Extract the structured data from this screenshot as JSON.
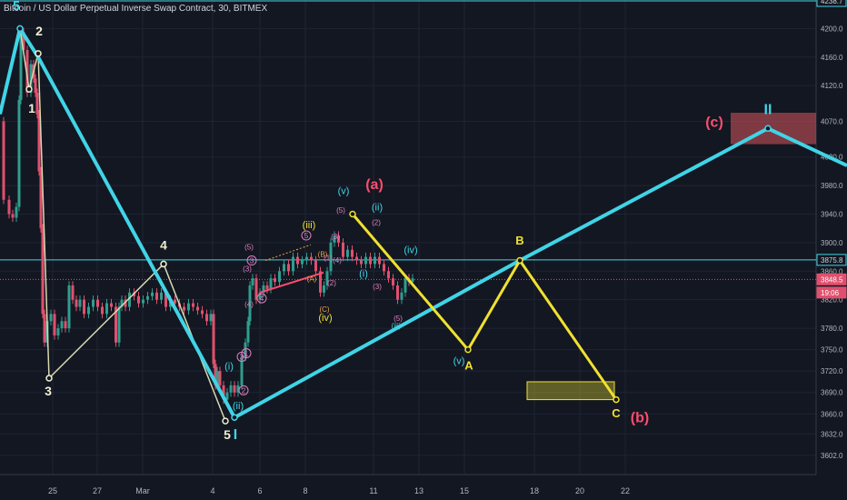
{
  "header": {
    "title": "Bitcoin / US Dollar Perpetual Inverse Swap Contract, 30, BITMEX"
  },
  "colors": {
    "background": "#131722",
    "grid": "#1e2433",
    "axis_text": "#b2b5be",
    "up": "#2f9e8f",
    "down": "#e0506e",
    "price": "#d1d4dc",
    "primary_wave": "#40d4e6",
    "abc_wave": "#f0e130",
    "minor_wave": "#d8d8b0",
    "red_label": "#ff4d6d",
    "pink": "#e080c0",
    "orange": "#f0a040",
    "axis_bg": "#131722",
    "current_price_bg": "#e0506e"
  },
  "chart_data": {
    "type": "candlestick",
    "symbol": "Bitcoin / US Dollar Perpetual Inverse Swap Contract",
    "interval": "30",
    "exchange": "BITMEX",
    "ylim": [
      3575,
      4240
    ],
    "y_ticks": [
      3602.0,
      3632.0,
      3660.0,
      3690.0,
      3720.0,
      3750.0,
      3780.0,
      3820.0,
      3860.0,
      3900.0,
      3940.0,
      3980.0,
      4020.0,
      4070.0,
      4120.0,
      4160.0,
      4200.0
    ],
    "x_ticks": [
      "25",
      "27",
      "Mar",
      "4",
      "6",
      "8",
      "11",
      "13",
      "15",
      "18",
      "20",
      "22"
    ],
    "price_markers": [
      {
        "label": "4238.7",
        "value": 4238.7
      },
      {
        "label": "3875.8",
        "value": 3875.8
      },
      {
        "label": "3848.5",
        "value": 3848.5
      },
      {
        "label": "19:06",
        "value": 3830.0
      }
    ],
    "price_path": [
      [
        0,
        4070
      ],
      [
        8,
        3960
      ],
      [
        12,
        3940
      ],
      [
        16,
        3935
      ],
      [
        20,
        3950
      ],
      [
        22,
        4100
      ],
      [
        24,
        4195
      ],
      [
        28,
        4170
      ],
      [
        32,
        4110
      ],
      [
        36,
        4150
      ],
      [
        38,
        4130
      ],
      [
        40,
        4110
      ],
      [
        42,
        4080
      ],
      [
        44,
        4000
      ],
      [
        46,
        3920
      ],
      [
        48,
        3800
      ],
      [
        50,
        3760
      ],
      [
        54,
        3790
      ],
      [
        58,
        3800
      ],
      [
        62,
        3770
      ],
      [
        66,
        3780
      ],
      [
        70,
        3790
      ],
      [
        74,
        3780
      ],
      [
        78,
        3840
      ],
      [
        82,
        3820
      ],
      [
        86,
        3810
      ],
      [
        90,
        3820
      ],
      [
        95,
        3800
      ],
      [
        100,
        3810
      ],
      [
        105,
        3820
      ],
      [
        110,
        3810
      ],
      [
        115,
        3800
      ],
      [
        120,
        3815
      ],
      [
        125,
        3810
      ],
      [
        130,
        3760
      ],
      [
        132,
        3810
      ],
      [
        136,
        3820
      ],
      [
        140,
        3810
      ],
      [
        145,
        3830
      ],
      [
        150,
        3825
      ],
      [
        155,
        3815
      ],
      [
        160,
        3820
      ],
      [
        165,
        3825
      ],
      [
        170,
        3830
      ],
      [
        175,
        3820
      ],
      [
        180,
        3830
      ],
      [
        185,
        3810
      ],
      [
        190,
        3820
      ],
      [
        195,
        3815
      ],
      [
        200,
        3810
      ],
      [
        205,
        3805
      ],
      [
        210,
        3815
      ],
      [
        215,
        3810
      ],
      [
        220,
        3805
      ],
      [
        225,
        3800
      ],
      [
        230,
        3790
      ],
      [
        234,
        3800
      ],
      [
        236,
        3730
      ],
      [
        238,
        3700
      ],
      [
        240,
        3720
      ],
      [
        244,
        3700
      ],
      [
        248,
        3680
      ],
      [
        252,
        3690
      ],
      [
        256,
        3700
      ],
      [
        260,
        3690
      ],
      [
        264,
        3700
      ],
      [
        268,
        3740
      ],
      [
        272,
        3760
      ],
      [
        274,
        3790
      ],
      [
        276,
        3840
      ],
      [
        280,
        3850
      ],
      [
        284,
        3820
      ],
      [
        288,
        3830
      ],
      [
        292,
        3840
      ],
      [
        296,
        3835
      ],
      [
        300,
        3850
      ],
      [
        305,
        3845
      ],
      [
        310,
        3860
      ],
      [
        315,
        3870
      ],
      [
        320,
        3860
      ],
      [
        325,
        3880
      ],
      [
        330,
        3870
      ],
      [
        335,
        3875
      ],
      [
        340,
        3880
      ],
      [
        345,
        3875
      ],
      [
        350,
        3860
      ],
      [
        355,
        3830
      ],
      [
        358,
        3840
      ],
      [
        362,
        3860
      ],
      [
        366,
        3900
      ],
      [
        370,
        3910
      ],
      [
        375,
        3900
      ],
      [
        380,
        3880
      ],
      [
        385,
        3890
      ],
      [
        390,
        3880
      ],
      [
        395,
        3875
      ],
      [
        400,
        3870
      ],
      [
        405,
        3880
      ],
      [
        410,
        3870
      ],
      [
        415,
        3880
      ],
      [
        420,
        3870
      ],
      [
        425,
        3860
      ],
      [
        430,
        3850
      ],
      [
        435,
        3840
      ],
      [
        440,
        3820
      ],
      [
        444,
        3830
      ],
      [
        448,
        3850
      ],
      [
        452,
        3845
      ],
      [
        456,
        3850
      ]
    ],
    "overlays": {
      "primary_wave": [
        [
          0,
          4080
        ],
        [
          22,
          4200
        ],
        [
          42,
          4160
        ],
        [
          258,
          3655
        ],
        [
          572,
          3875
        ],
        [
          845,
          4060
        ],
        [
          932,
          4008
        ]
      ],
      "abc_wave": [
        [
          388,
          3940
        ],
        [
          515,
          3750
        ],
        [
          572,
          3875
        ],
        [
          678,
          3680
        ]
      ],
      "minor_wave_yellowish": [
        [
          22,
          4200
        ],
        [
          32,
          4115
        ],
        [
          42,
          4165
        ],
        [
          54,
          3710
        ],
        [
          180,
          3870
        ],
        [
          248,
          3650
        ]
      ],
      "red_trendline": [
        [
          286,
          3830
        ],
        [
          356,
          3858
        ]
      ],
      "orange_dotted": [
        [
          292,
          3875
        ],
        [
          342,
          3897
        ]
      ],
      "yellow_box": {
        "x_from": 580,
        "x_to": 676,
        "y_from": 3680,
        "y_to": 3705
      },
      "red_box": {
        "x_from": 804,
        "x_to": 898,
        "y_from": 4038,
        "y_to": 4082
      },
      "horizontal_lines": [
        {
          "value": 4238.7,
          "color": "#40d4e6",
          "style": "solid"
        },
        {
          "value": 3875.8,
          "color": "#40d4e6",
          "style": "solid"
        },
        {
          "value": 3848.5,
          "color": "#e0506e",
          "style": "dotted"
        }
      ]
    },
    "annotations": [
      {
        "text": "5",
        "x": 18,
        "y": 4226,
        "color": "#40d4e6",
        "size": 14
      },
      {
        "text": "2",
        "x": 43,
        "y": 4190,
        "color": "#f0f0d0",
        "size": 14
      },
      {
        "text": "1",
        "x": 35,
        "y": 4082,
        "color": "#f0f0d0",
        "size": 14
      },
      {
        "text": "3",
        "x": 53,
        "y": 3686,
        "color": "#f0f0d0",
        "size": 14
      },
      {
        "text": "4",
        "x": 180,
        "y": 3890,
        "color": "#f0f0d0",
        "size": 14
      },
      {
        "text": "5",
        "x": 250,
        "y": 3625,
        "color": "#f0f0d0",
        "size": 14
      },
      {
        "text": "I",
        "x": 259,
        "y": 3625,
        "color": "#40d4e6",
        "size": 16
      },
      {
        "text": "(i)",
        "x": 252,
        "y": 3722,
        "color": "#40d4e6",
        "size": 11
      },
      {
        "text": "(ii)",
        "x": 262,
        "y": 3667,
        "color": "#40d4e6",
        "size": 11
      },
      {
        "text": "(iii)",
        "x": 340,
        "y": 3920,
        "color": "#f0e130",
        "size": 11
      },
      {
        "text": "(iv)",
        "x": 358,
        "y": 3790,
        "color": "#f0e130",
        "size": 11
      },
      {
        "text": "(v)",
        "x": 378,
        "y": 3968,
        "color": "#40d4e6",
        "size": 11
      },
      {
        "text": "(a)",
        "x": 412,
        "y": 3975,
        "color": "#ff4d6d",
        "size": 16
      },
      {
        "text": "(ii)",
        "x": 415,
        "y": 3945,
        "color": "#40d4e6",
        "size": 11
      },
      {
        "text": "(iv)",
        "x": 452,
        "y": 3885,
        "color": "#40d4e6",
        "size": 11
      },
      {
        "text": "(i)",
        "x": 400,
        "y": 3852,
        "color": "#40d4e6",
        "size": 11
      },
      {
        "text": "(v)",
        "x": 505,
        "y": 3730,
        "color": "#40d4e6",
        "size": 11
      },
      {
        "text": "A",
        "x": 516,
        "y": 3722,
        "color": "#f0e130",
        "size": 13
      },
      {
        "text": "B",
        "x": 572,
        "y": 3897,
        "color": "#f0e130",
        "size": 13
      },
      {
        "text": "C",
        "x": 678,
        "y": 3655,
        "color": "#f0e130",
        "size": 13
      },
      {
        "text": "(b)",
        "x": 704,
        "y": 3648,
        "color": "#ff4d6d",
        "size": 16
      },
      {
        "text": "(c)",
        "x": 786,
        "y": 4062,
        "color": "#ff4d6d",
        "size": 16
      },
      {
        "text": "II",
        "x": 845,
        "y": 4080,
        "color": "#40d4e6",
        "size": 16
      },
      {
        "text": "(4)",
        "x": 274,
        "y": 3810,
        "color": "#e080c0",
        "size": 8
      },
      {
        "text": "(5)",
        "x": 274,
        "y": 3890,
        "color": "#e080c0",
        "size": 8
      },
      {
        "text": "(3)",
        "x": 272,
        "y": 3860,
        "color": "#e080c0",
        "size": 8
      },
      {
        "text": "(B)",
        "x": 355,
        "y": 3880,
        "color": "#f0a040",
        "size": 8
      },
      {
        "text": "(C)",
        "x": 357,
        "y": 3803,
        "color": "#f0a040",
        "size": 8
      },
      {
        "text": "(A)",
        "x": 343,
        "y": 3846,
        "color": "#f0a040",
        "size": 8
      },
      {
        "text": "(5)",
        "x": 375,
        "y": 3942,
        "color": "#e080c0",
        "size": 8
      },
      {
        "text": "(3)",
        "x": 369,
        "y": 3905,
        "color": "#e080c0",
        "size": 8
      },
      {
        "text": "(2)",
        "x": 365,
        "y": 3840,
        "color": "#e080c0",
        "size": 8
      },
      {
        "text": "(2)",
        "x": 414,
        "y": 3925,
        "color": "#e080c0",
        "size": 8
      },
      {
        "text": "(3)",
        "x": 415,
        "y": 3835,
        "color": "#e080c0",
        "size": 8
      },
      {
        "text": "(5)",
        "x": 438,
        "y": 3790,
        "color": "#e080c0",
        "size": 8
      },
      {
        "text": "(iii)",
        "x": 436,
        "y": 3780,
        "color": "#40d4e6",
        "size": 8
      },
      {
        "text": "(4)",
        "x": 371,
        "y": 3872,
        "color": "#e080c0",
        "size": 8
      },
      {
        "text": "(1)",
        "x": 361,
        "y": 3875,
        "color": "#e080c0",
        "size": 8
      }
    ],
    "circled_labels": [
      {
        "text": "3",
        "x": 277,
        "y": 3875,
        "color": "#e080c0"
      },
      {
        "text": "4",
        "x": 288,
        "y": 3822,
        "color": "#e080c0"
      },
      {
        "text": "5",
        "x": 337,
        "y": 3910,
        "color": "#e080c0"
      },
      {
        "text": "3",
        "x": 266,
        "y": 3740,
        "color": "#e080c0"
      },
      {
        "text": "2",
        "x": 268,
        "y": 3693,
        "color": "#e080c0"
      },
      {
        "text": "1",
        "x": 271,
        "y": 3745,
        "color": "#e080c0"
      }
    ],
    "points": [
      {
        "x": 22,
        "y": 4200,
        "color": "#40d4e6"
      },
      {
        "x": 258,
        "y": 3655,
        "color": "#40d4e6"
      },
      {
        "x": 845,
        "y": 4060,
        "color": "#40d4e6"
      },
      {
        "x": 388,
        "y": 3940,
        "color": "#f0e130"
      },
      {
        "x": 515,
        "y": 3750,
        "color": "#f0e130"
      },
      {
        "x": 572,
        "y": 3875,
        "color": "#f0e130"
      },
      {
        "x": 678,
        "y": 3680,
        "color": "#f0e130"
      },
      {
        "x": 42,
        "y": 4165,
        "color": "#f0f0d0"
      },
      {
        "x": 54,
        "y": 3710,
        "color": "#f0f0d0"
      },
      {
        "x": 180,
        "y": 3870,
        "color": "#f0f0d0"
      },
      {
        "x": 248,
        "y": 3650,
        "color": "#f0f0d0"
      },
      {
        "x": 32,
        "y": 4115,
        "color": "#f0f0d0"
      }
    ]
  }
}
